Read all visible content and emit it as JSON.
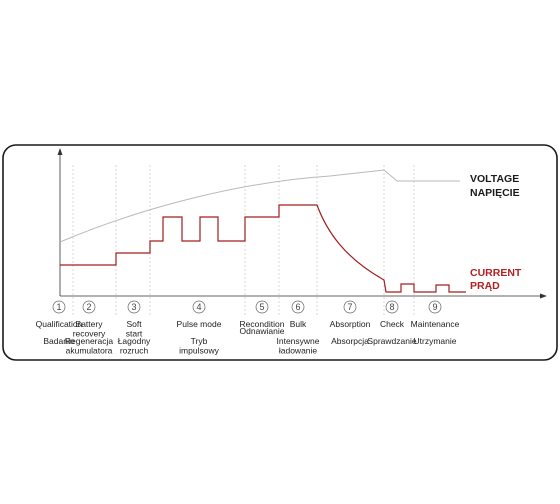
{
  "legend": {
    "voltage_en": "VOLTAGE",
    "voltage_pl": "NAPIĘCIE",
    "current_en": "CURRENT",
    "current_pl": "PRĄD"
  },
  "colors": {
    "frame": "#1a1a1a",
    "axis": "#333333",
    "voltage_line": "#b9b9b9",
    "current_line": "#a01e1e",
    "current_label": "#b21f24",
    "divider": "#bdbdbd"
  },
  "stages": [
    {
      "number": "1",
      "label_en": [
        "Qualification"
      ],
      "label_pl": [
        "Badanie"
      ]
    },
    {
      "number": "2",
      "label_en": [
        "Battery",
        "recovery"
      ],
      "label_pl": [
        "Regeneracja",
        "akumulatora"
      ]
    },
    {
      "number": "3",
      "label_en": [
        "Soft",
        "start"
      ],
      "label_pl": [
        "Łagodny",
        "rozruch"
      ]
    },
    {
      "number": "4",
      "label_en": [
        "Pulse mode"
      ],
      "label_pl": [
        "Tryb",
        "impulsowy"
      ]
    },
    {
      "number": "5",
      "label_en": [
        "Recondition"
      ],
      "label_pl": [
        "Odnawianie"
      ]
    },
    {
      "number": "6",
      "label_en": [
        "Bulk"
      ],
      "label_pl": [
        "Intensywne",
        "ładowanie"
      ]
    },
    {
      "number": "7",
      "label_en": [
        "Absorption"
      ],
      "label_pl": [
        "Absorpcja"
      ]
    },
    {
      "number": "8",
      "label_en": [
        "Check"
      ],
      "label_pl": [
        "Sprawdzanie"
      ]
    },
    {
      "number": "9",
      "label_en": [
        "Maintenance"
      ],
      "label_pl": [
        "Utrzymanie"
      ]
    }
  ]
}
